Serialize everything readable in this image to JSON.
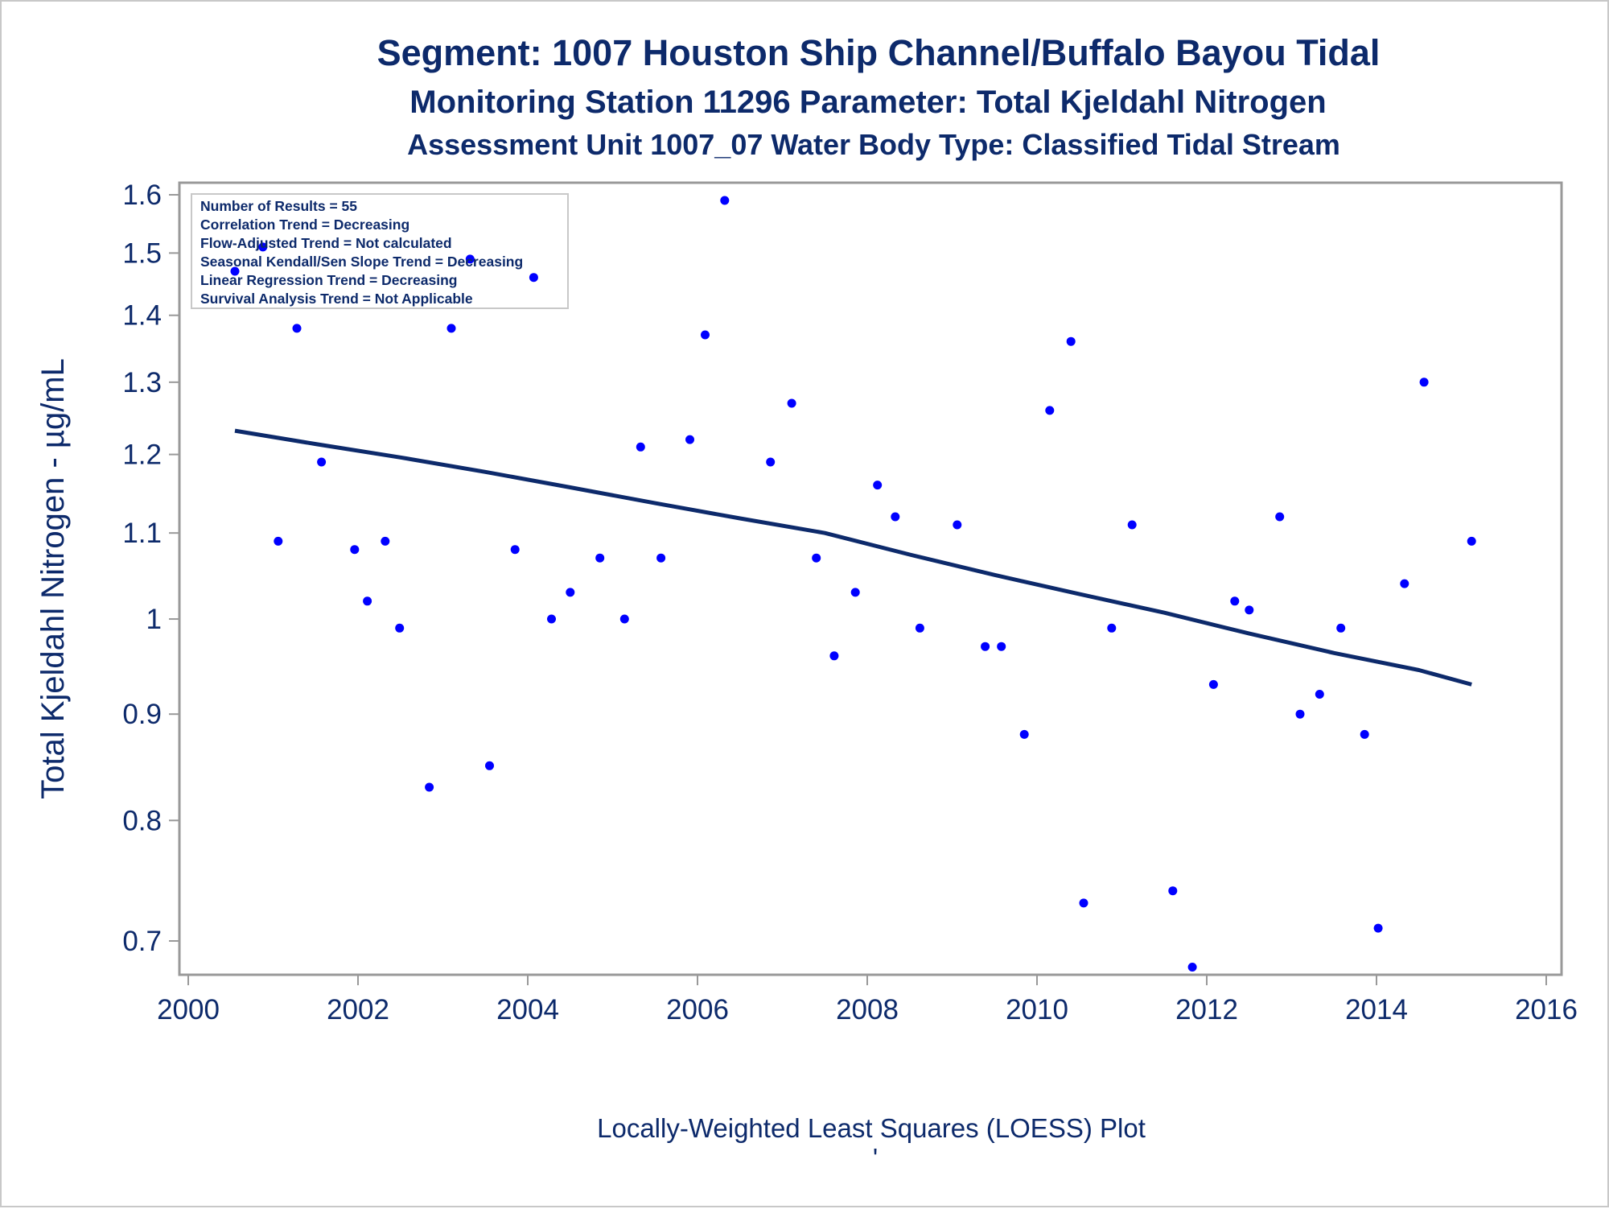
{
  "chart_data": {
    "type": "scatter",
    "title": "Segment: 1007  Houston Ship Channel/Buffalo Bayou Tidal",
    "subtitle": "Monitoring Station 11296 Parameter: Total Kjeldahl Nitrogen",
    "subtitle2": "Assessment Unit 1007_07   Water Body Type: Classified Tidal Stream",
    "xlabel": "",
    "ylabel": "Total Kjeldahl Nitrogen -  µg/mL",
    "footnote": "Locally-Weighted Least Squares (LOESS) Plot",
    "footnote_mark": "'",
    "y_scale": "log",
    "xlim": [
      2000,
      2016
    ],
    "ylim": [
      0.67,
      1.62
    ],
    "x_ticks": [
      2000,
      2002,
      2004,
      2006,
      2008,
      2010,
      2012,
      2014,
      2016
    ],
    "x_tick_labels": [
      "2000",
      "2002",
      "2004",
      "2006",
      "2008",
      "2010",
      "2012",
      "2014",
      "2016"
    ],
    "y_ticks": [
      0.7,
      0.8,
      0.9,
      1.0,
      1.1,
      1.2,
      1.3,
      1.4,
      1.5,
      1.6
    ],
    "y_tick_labels": [
      "0.7",
      "0.8",
      "0.9",
      "1",
      "1.1",
      "1.2",
      "1.3",
      "1.4",
      "1.5",
      "1.6"
    ],
    "grid": false,
    "legend_position": "top-left",
    "stats_box": [
      "Number of Results = 55",
      "Correlation Trend = Decreasing",
      "Flow-Adjusted Trend = Not calculated",
      "Seasonal Kendall/Sen Slope Trend = Decreasing",
      "Linear Regression Trend = Decreasing",
      "Survival Analysis Trend = Not Applicable"
    ],
    "colors": {
      "points": "#0000ff",
      "trend_line": "#0d2a6b",
      "text": "#0d2a6b",
      "axis": "#999999"
    },
    "points": [
      {
        "x": 2000.55,
        "y": 1.47
      },
      {
        "x": 2000.88,
        "y": 1.51
      },
      {
        "x": 2001.06,
        "y": 1.09
      },
      {
        "x": 2001.28,
        "y": 1.38
      },
      {
        "x": 2001.57,
        "y": 1.19
      },
      {
        "x": 2001.96,
        "y": 1.08
      },
      {
        "x": 2002.11,
        "y": 1.02
      },
      {
        "x": 2002.32,
        "y": 1.09
      },
      {
        "x": 2002.49,
        "y": 0.99
      },
      {
        "x": 2002.84,
        "y": 0.83
      },
      {
        "x": 2003.1,
        "y": 1.38
      },
      {
        "x": 2003.32,
        "y": 1.49
      },
      {
        "x": 2003.55,
        "y": 0.85
      },
      {
        "x": 2003.85,
        "y": 1.08
      },
      {
        "x": 2004.07,
        "y": 1.46
      },
      {
        "x": 2004.28,
        "y": 1.0
      },
      {
        "x": 2004.5,
        "y": 1.03
      },
      {
        "x": 2004.85,
        "y": 1.07
      },
      {
        "x": 2005.14,
        "y": 1.0
      },
      {
        "x": 2005.33,
        "y": 1.21
      },
      {
        "x": 2005.57,
        "y": 1.07
      },
      {
        "x": 2005.91,
        "y": 1.22
      },
      {
        "x": 2006.09,
        "y": 1.37
      },
      {
        "x": 2006.32,
        "y": 1.59
      },
      {
        "x": 2006.86,
        "y": 1.19
      },
      {
        "x": 2007.11,
        "y": 1.27
      },
      {
        "x": 2007.4,
        "y": 1.07
      },
      {
        "x": 2007.61,
        "y": 0.96
      },
      {
        "x": 2007.86,
        "y": 1.03
      },
      {
        "x": 2008.12,
        "y": 1.16
      },
      {
        "x": 2008.33,
        "y": 1.12
      },
      {
        "x": 2008.62,
        "y": 0.99
      },
      {
        "x": 2009.06,
        "y": 1.11
      },
      {
        "x": 2009.39,
        "y": 0.97
      },
      {
        "x": 2009.58,
        "y": 0.97
      },
      {
        "x": 2009.85,
        "y": 0.88
      },
      {
        "x": 2010.15,
        "y": 1.26
      },
      {
        "x": 2010.4,
        "y": 1.36
      },
      {
        "x": 2010.55,
        "y": 0.73
      },
      {
        "x": 2010.88,
        "y": 0.99
      },
      {
        "x": 2011.12,
        "y": 1.11
      },
      {
        "x": 2011.6,
        "y": 0.74
      },
      {
        "x": 2011.83,
        "y": 0.68
      },
      {
        "x": 2012.08,
        "y": 0.93
      },
      {
        "x": 2012.33,
        "y": 1.02
      },
      {
        "x": 2012.5,
        "y": 1.01
      },
      {
        "x": 2012.86,
        "y": 1.12
      },
      {
        "x": 2013.1,
        "y": 0.9
      },
      {
        "x": 2013.33,
        "y": 0.92
      },
      {
        "x": 2013.58,
        "y": 0.99
      },
      {
        "x": 2013.86,
        "y": 0.88
      },
      {
        "x": 2014.02,
        "y": 0.71
      },
      {
        "x": 2014.33,
        "y": 1.04
      },
      {
        "x": 2014.56,
        "y": 1.3
      },
      {
        "x": 2015.12,
        "y": 1.09
      }
    ],
    "loess_line": [
      {
        "x": 2000.55,
        "y": 1.232
      },
      {
        "x": 2001.5,
        "y": 1.214
      },
      {
        "x": 2002.5,
        "y": 1.196
      },
      {
        "x": 2003.5,
        "y": 1.177
      },
      {
        "x": 2004.5,
        "y": 1.157
      },
      {
        "x": 2005.5,
        "y": 1.137
      },
      {
        "x": 2006.5,
        "y": 1.118
      },
      {
        "x": 2007.5,
        "y": 1.1
      },
      {
        "x": 2008.5,
        "y": 1.074
      },
      {
        "x": 2009.5,
        "y": 1.05
      },
      {
        "x": 2010.5,
        "y": 1.028
      },
      {
        "x": 2011.5,
        "y": 1.007
      },
      {
        "x": 2012.5,
        "y": 0.984
      },
      {
        "x": 2013.5,
        "y": 0.963
      },
      {
        "x": 2014.5,
        "y": 0.945
      },
      {
        "x": 2015.12,
        "y": 0.93
      }
    ]
  }
}
